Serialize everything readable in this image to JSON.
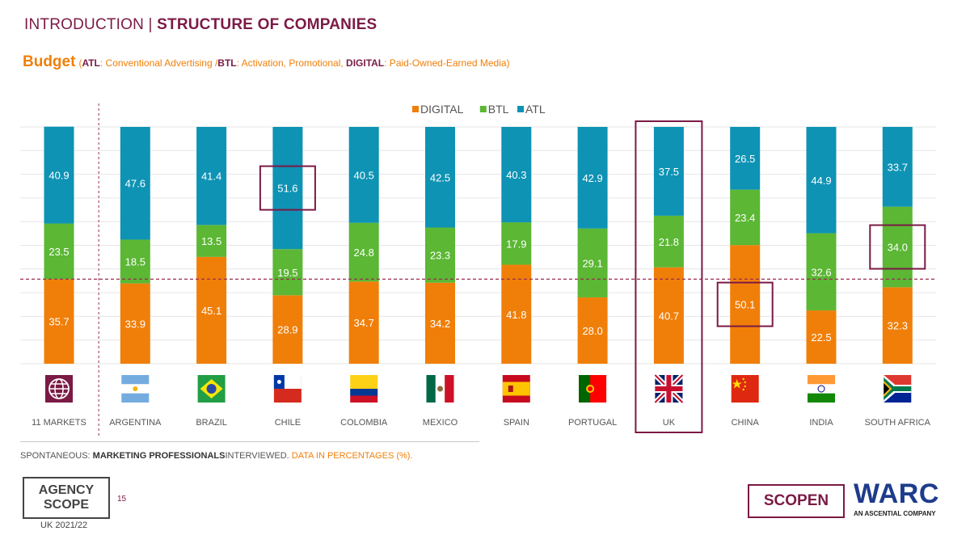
{
  "header": {
    "title_left": "INTRODUCTION | ",
    "title_right": "STRUCTURE OF COMPANIES"
  },
  "subtitle": {
    "main": "Budget",
    "open_paren": "(",
    "atl_key": "ATL",
    "atl_desc": ": Conventional Advertising /",
    "btl_key": "BTL",
    "btl_desc": ": Activation, Promotional, ",
    "digital_key": "DIGITAL",
    "digital_desc": ": Paid-Owned-Earned Media)"
  },
  "colors": {
    "digital": "#f07f09",
    "btl": "#5bb734",
    "atl": "#0e93b4",
    "highlight": "#7b1a45",
    "reference_line": "#9b2d50"
  },
  "chart_data": {
    "type": "bar",
    "stacked": true,
    "categories": [
      "11 MARKETS",
      "ARGENTINA",
      "BRAZIL",
      "CHILE",
      "COLOMBIA",
      "MEXICO",
      "SPAIN",
      "PORTUGAL",
      "UK",
      "CHINA",
      "INDIA",
      "SOUTH AFRICA"
    ],
    "series": [
      {
        "name": "DIGITAL",
        "color": "#f07f09",
        "values": [
          35.7,
          33.9,
          45.1,
          28.9,
          34.7,
          34.2,
          41.8,
          28.0,
          40.7,
          50.1,
          22.5,
          32.3
        ]
      },
      {
        "name": "BTL",
        "color": "#5bb734",
        "values": [
          23.5,
          18.5,
          13.5,
          19.5,
          24.8,
          23.3,
          17.9,
          29.1,
          21.8,
          23.4,
          32.6,
          34.0
        ]
      },
      {
        "name": "ATL",
        "color": "#0e93b4",
        "values": [
          40.9,
          47.6,
          41.4,
          51.6,
          40.5,
          42.5,
          40.3,
          42.9,
          37.5,
          26.5,
          44.9,
          33.7
        ]
      }
    ],
    "legend": [
      "DIGITAL",
      "BTL",
      "ATL"
    ],
    "legend_position": "top",
    "ylim": [
      0,
      100
    ],
    "grid": true,
    "reference_line_value": 35.7,
    "highlighted_category": "UK",
    "highlighted_values": [
      {
        "category": "CHILE",
        "series": "ATL"
      },
      {
        "category": "CHINA",
        "series": "DIGITAL"
      },
      {
        "category": "SOUTH AFRICA",
        "series": "BTL"
      }
    ],
    "icons": [
      "globe-icon",
      "flag-argentina-icon",
      "flag-brazil-icon",
      "flag-chile-icon",
      "flag-colombia-icon",
      "flag-mexico-icon",
      "flag-spain-icon",
      "flag-portugal-icon",
      "flag-uk-icon",
      "flag-china-icon",
      "flag-india-icon",
      "flag-south-africa-icon"
    ]
  },
  "footer": {
    "note_a": "SPONTANEOUS: ",
    "note_b": "MARKETING PROFESSIONALS",
    "note_c": "INTERVIEWED. ",
    "note_d": "DATA IN PERCENTAGES (%).",
    "page_number": "15",
    "logo_line1": "AGENCY",
    "logo_line2": "SCOPE",
    "logo_sub": "UK 2021/22",
    "scopen": "SCOPEN",
    "warc": "WARC",
    "warc_sub": "AN ASCENTIAL COMPANY"
  }
}
